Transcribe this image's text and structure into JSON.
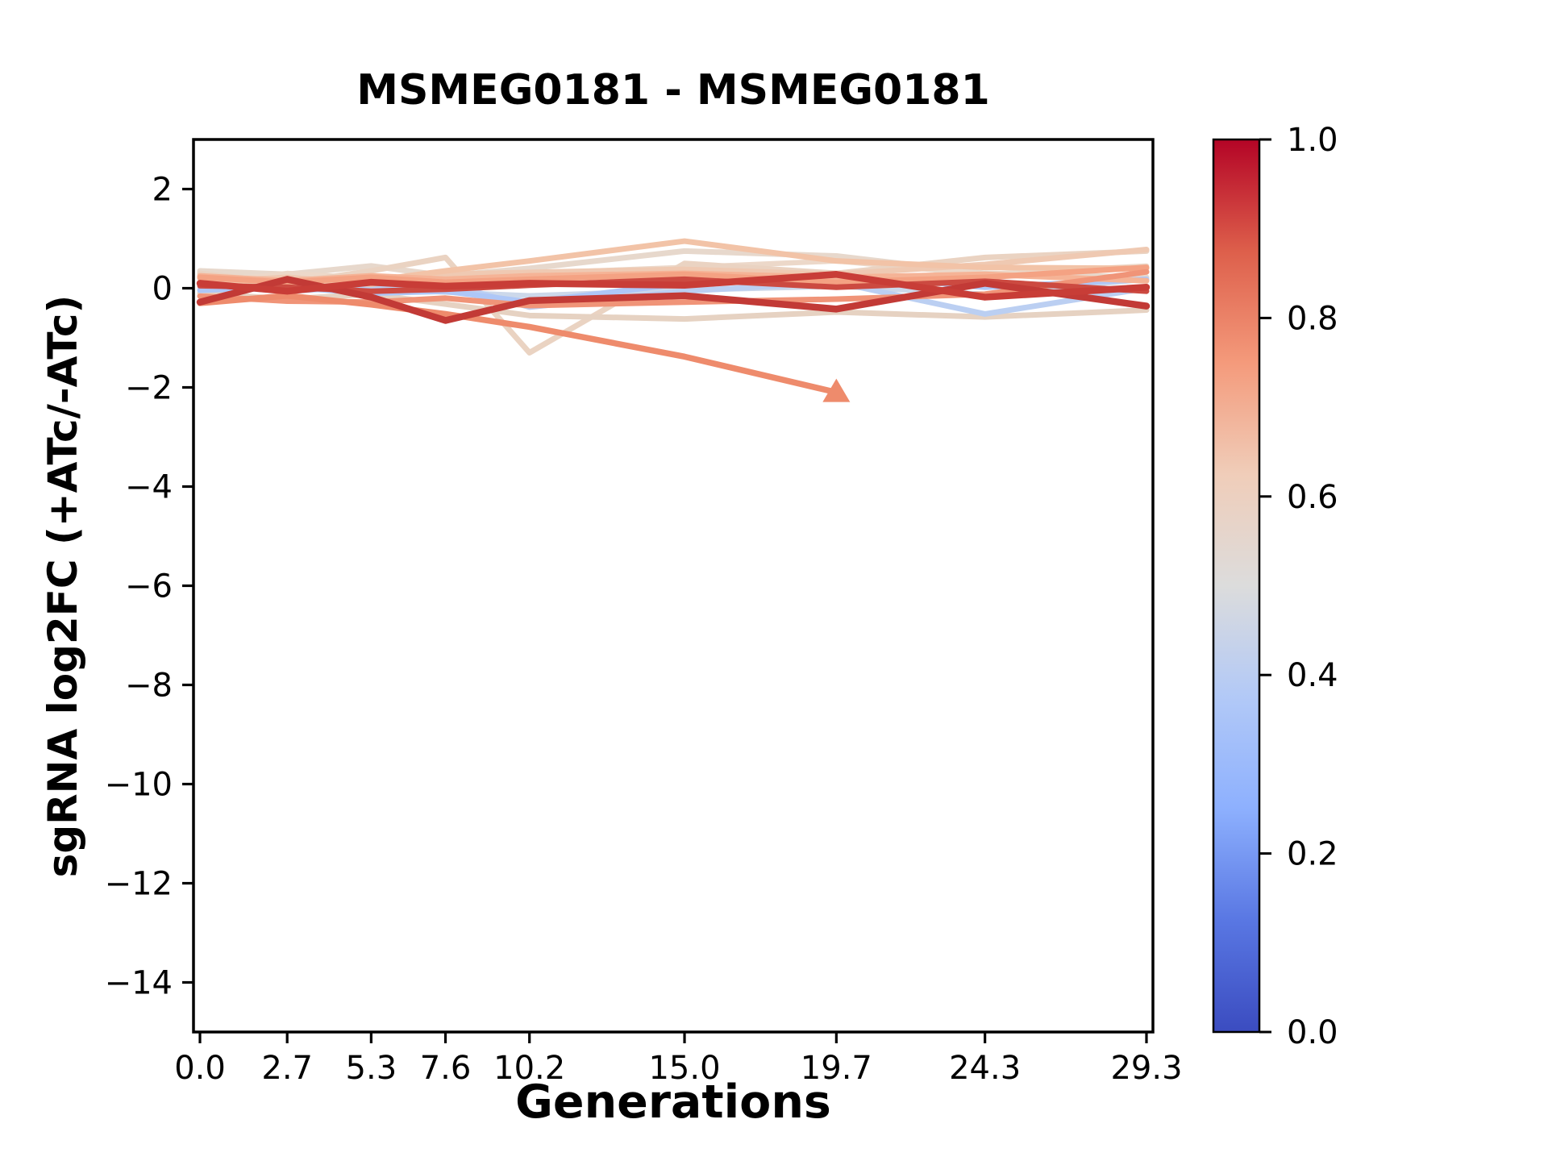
{
  "title": "MSMEG0181 - MSMEG0181",
  "chart_data": {
    "type": "line",
    "title": "MSMEG0181 - MSMEG0181",
    "xlabel": "Generations",
    "ylabel": "sgRNA log2FC (+ATc/-ATc)",
    "xlim": [
      -0.2,
      29.5
    ],
    "ylim": [
      -15,
      3
    ],
    "grid": false,
    "legend_position": "none",
    "x": [
      0.0,
      2.7,
      5.3,
      7.6,
      10.2,
      15.0,
      19.7,
      24.3,
      29.3
    ],
    "x_ticks": {
      "values": [
        0.0,
        2.7,
        5.3,
        7.6,
        10.2,
        15.0,
        19.7,
        24.3,
        29.3
      ],
      "labels": [
        "0.0",
        "2.7",
        "5.3",
        "7.6",
        "10.2",
        "15.0",
        "19.7",
        "24.3",
        "29.3"
      ]
    },
    "y_ticks": {
      "values": [
        2,
        0,
        -2,
        -4,
        -6,
        -8,
        -10,
        -12,
        -14
      ],
      "labels": [
        "2",
        "0",
        "−2",
        "−4",
        "−6",
        "−8",
        "−10",
        "−12",
        "−14"
      ]
    },
    "series": [
      {
        "id": "line-01",
        "color": "#e7d8cc",
        "width": 7,
        "values": [
          0.35,
          0.28,
          0.45,
          0.25,
          0.4,
          0.75,
          0.65,
          0.3,
          0.22
        ]
      },
      {
        "id": "line-02",
        "color": "#ecd8c9",
        "width": 6.5,
        "values": [
          0.1,
          0.3,
          0.2,
          0.1,
          0.3,
          0.42,
          0.55,
          0.28,
          0.45
        ]
      },
      {
        "id": "line-03",
        "color": "#ead3c2",
        "width": 7,
        "values": [
          0.3,
          0.1,
          0.35,
          0.62,
          -1.3,
          0.5,
          0.3,
          0.62,
          0.75
        ]
      },
      {
        "id": "line-04",
        "color": "#e6d2c2",
        "width": 7,
        "values": [
          -0.1,
          -0.22,
          -0.12,
          -0.32,
          -0.55,
          -0.62,
          -0.48,
          -0.58,
          -0.44
        ]
      },
      {
        "id": "line-05",
        "color": "#ccd8ea",
        "width": 6.5,
        "values": [
          0.0,
          0.06,
          0.0,
          -0.08,
          -0.15,
          -0.04,
          0.04,
          -0.12,
          0.18
        ]
      },
      {
        "id": "line-06",
        "color": "#bbcff2",
        "width": 7,
        "values": [
          0.06,
          -0.06,
          0.04,
          0.1,
          -0.38,
          -0.06,
          0.12,
          -0.52,
          0.0
        ]
      },
      {
        "id": "line-07",
        "color": "#aec7f7",
        "width": 7,
        "values": [
          -0.04,
          0.02,
          -0.1,
          -0.06,
          -0.28,
          0.1,
          0.28,
          0.02,
          0.18
        ]
      },
      {
        "id": "line-08",
        "color": "#efc9b2",
        "width": 7,
        "values": [
          0.12,
          0.22,
          0.08,
          0.28,
          0.32,
          0.38,
          0.28,
          0.48,
          0.78
        ]
      },
      {
        "id": "line-09",
        "color": "#f2c3a7",
        "width": 7,
        "values": [
          0.2,
          0.05,
          0.15,
          0.35,
          0.55,
          0.95,
          0.55,
          0.42,
          0.4
        ]
      },
      {
        "id": "line-10",
        "color": "#f5b396",
        "width": 7,
        "values": [
          0.25,
          0.15,
          0.25,
          0.18,
          0.25,
          0.3,
          0.22,
          0.28,
          0.15
        ]
      },
      {
        "id": "line-11",
        "color": "#f4a283",
        "width": 7,
        "values": [
          0.22,
          0.12,
          0.22,
          0.12,
          0.18,
          0.28,
          0.12,
          0.22,
          0.42
        ]
      },
      {
        "id": "line-12",
        "color": "#f09478",
        "width": 7,
        "values": [
          -0.16,
          -0.26,
          -0.28,
          -0.2,
          -0.35,
          -0.28,
          -0.22,
          -0.12,
          0.33
        ]
      },
      {
        "id": "line-13",
        "color": "#ee8b6c",
        "width": 7.5,
        "values": [
          -0.3,
          -0.15,
          -0.33,
          -0.52,
          -0.78,
          -1.38,
          -2.1
        ],
        "marker": "triangle-up"
      },
      {
        "id": "line-14",
        "color": "#cc4a41",
        "width": 7,
        "values": [
          0.05,
          0.02,
          -0.06,
          -0.02,
          0.06,
          0.18,
          0.02,
          0.14,
          -0.06
        ]
      },
      {
        "id": "line-15",
        "color": "#c23a36",
        "width": 8.5,
        "values": [
          -0.28,
          0.18,
          -0.18,
          -0.65,
          -0.25,
          -0.15,
          -0.42,
          0.1,
          -0.36
        ]
      },
      {
        "id": "line-16",
        "color": "#c83d37",
        "width": 8.5,
        "values": [
          0.1,
          -0.06,
          0.12,
          0.04,
          0.1,
          0.06,
          0.28,
          -0.18,
          0.02
        ]
      }
    ],
    "colorbar": {
      "colormap": "coolwarm",
      "ticks": {
        "values": [
          0.0,
          0.2,
          0.4,
          0.6,
          0.8,
          1.0
        ],
        "labels": [
          "0.0",
          "0.2",
          "0.4",
          "0.6",
          "0.8",
          "1.0"
        ]
      },
      "gradient": [
        [
          0.0,
          "#3b4cc0"
        ],
        [
          0.125,
          "#5977e3"
        ],
        [
          0.25,
          "#8db0fe"
        ],
        [
          0.375,
          "#b2c9f7"
        ],
        [
          0.5,
          "#dcdcdc"
        ],
        [
          0.625,
          "#f0cdb9"
        ],
        [
          0.75,
          "#f49a7b"
        ],
        [
          0.875,
          "#dd5f4b"
        ],
        [
          1.0,
          "#b40426"
        ]
      ]
    }
  }
}
